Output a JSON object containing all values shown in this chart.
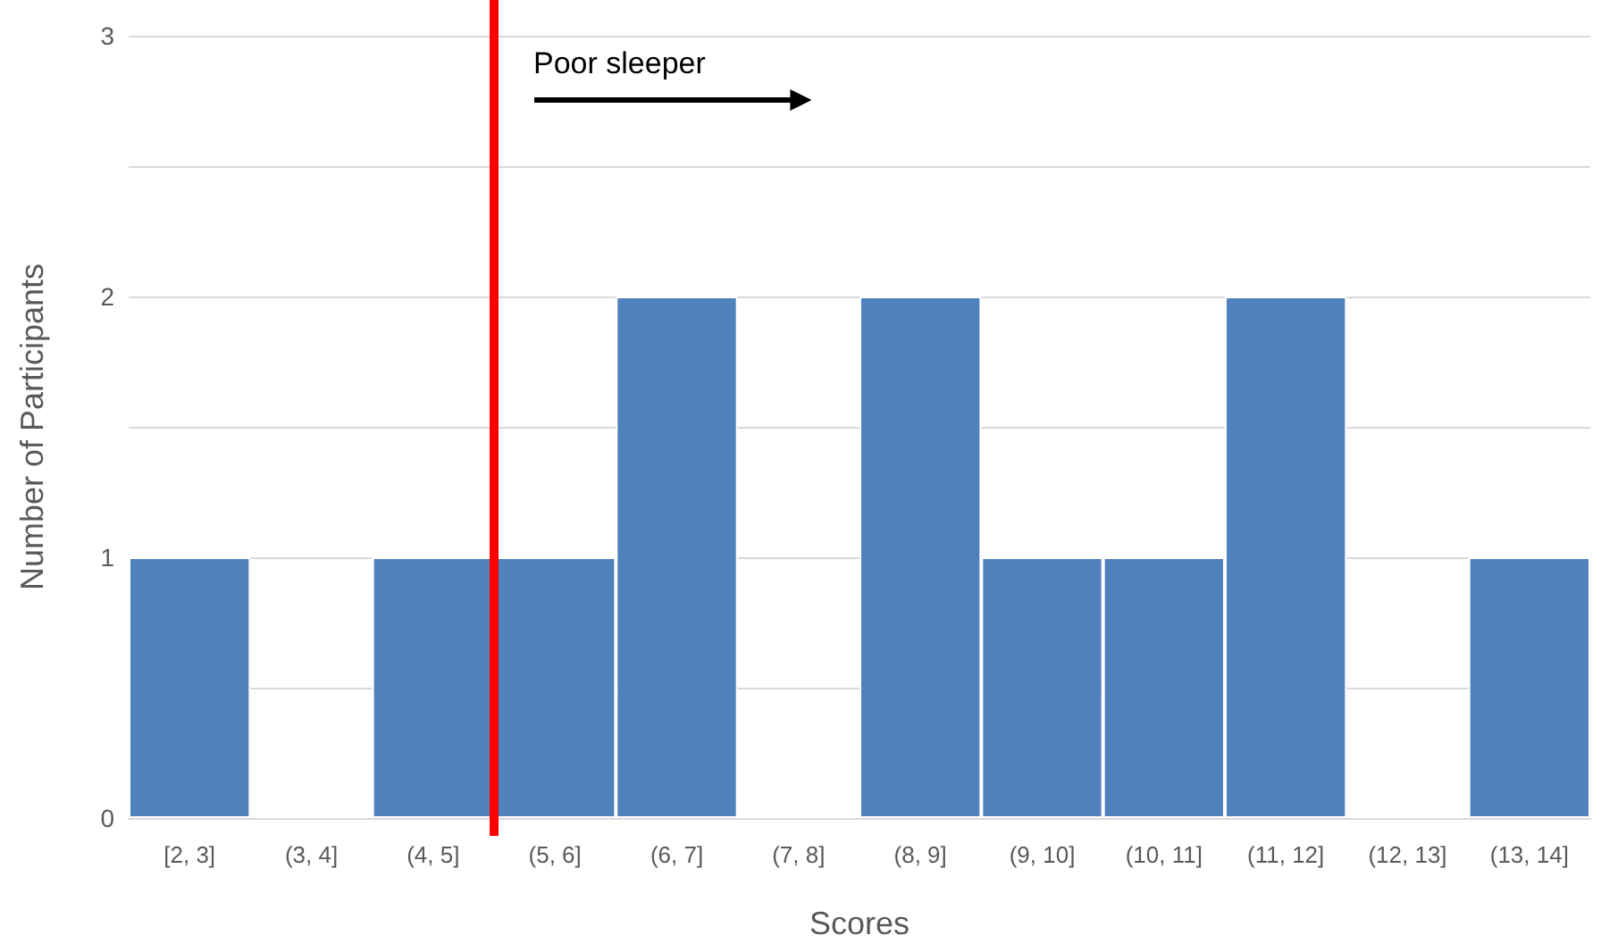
{
  "chart_data": {
    "type": "bar",
    "xlabel": "Scores",
    "ylabel": "Number of Participants",
    "categories": [
      "[2, 3]",
      "(3, 4]",
      "(4, 5]",
      "(5, 6]",
      "(6, 7]",
      "(7, 8]",
      "(8, 9]",
      "(9, 10]",
      "(10, 11]",
      "(11, 12]",
      "(12, 13]",
      "(13, 14]"
    ],
    "values": [
      1,
      0,
      1,
      1,
      2,
      0,
      2,
      1,
      1,
      2,
      0,
      1
    ],
    "color": "#4f81bd",
    "ylim": [
      0,
      3
    ],
    "yticks": [
      0,
      {
        "value": 0.5,
        "label": null
      },
      1,
      {
        "value": 1.5,
        "label": null
      },
      2,
      {
        "value": 2.5,
        "label": null
      },
      3
    ],
    "grid": "y",
    "ref_lines": [
      {
        "axis": "x",
        "value": "(5, 6]",
        "color": "#ff0000"
      }
    ],
    "annotations": [
      "Poor sleeper"
    ]
  }
}
